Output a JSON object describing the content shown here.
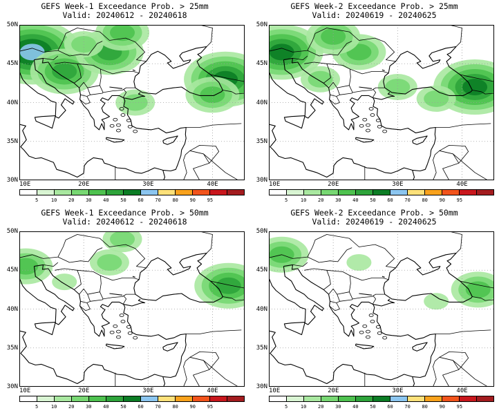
{
  "panels": [
    {
      "title_line1": "GEFS Week-1 Exceedance Prob. > 25mm",
      "title_line2": "Valid: 20240612 - 20240618",
      "precip_threshold_mm": 25,
      "week": 1,
      "blobs": [
        {
          "lon": 12,
          "lat": 46.5,
          "level": 5
        },
        {
          "lon": 17,
          "lat": 44,
          "level": 3
        },
        {
          "lon": 24,
          "lat": 46.5,
          "level": 3
        },
        {
          "lon": 26,
          "lat": 49,
          "level": 2
        },
        {
          "lon": 20,
          "lat": 47.5,
          "level": 1
        },
        {
          "lon": 42,
          "lat": 43,
          "level": 4
        },
        {
          "lon": 28,
          "lat": 40,
          "level": 1
        },
        {
          "lon": 40,
          "lat": 41,
          "level": 2
        }
      ]
    },
    {
      "title_line1": "GEFS Week-2 Exceedance Prob. > 25mm",
      "title_line2": "Valid: 20240619 - 20240625",
      "precip_threshold_mm": 25,
      "week": 2,
      "blobs": [
        {
          "lon": 12,
          "lat": 46.5,
          "level": 4
        },
        {
          "lon": 24,
          "lat": 46.5,
          "level": 2
        },
        {
          "lon": 20,
          "lat": 48.5,
          "level": 2
        },
        {
          "lon": 42,
          "lat": 42,
          "level": 4
        },
        {
          "lon": 18,
          "lat": 43,
          "level": 1
        },
        {
          "lon": 30,
          "lat": 42,
          "level": 1
        },
        {
          "lon": 36,
          "lat": 40.5,
          "level": 1
        }
      ]
    },
    {
      "title_line1": "GEFS Week-1 Exceedance Prob. > 50mm",
      "title_line2": "Valid: 20240612 - 20240618",
      "precip_threshold_mm": 50,
      "week": 1,
      "blobs": [
        {
          "lon": 11,
          "lat": 45.5,
          "level": 2
        },
        {
          "lon": 24,
          "lat": 46,
          "level": 1
        },
        {
          "lon": 26,
          "lat": 49,
          "level": 1
        },
        {
          "lon": 42.5,
          "lat": 43,
          "level": 3
        },
        {
          "lon": 17,
          "lat": 43.5,
          "level": 0
        }
      ]
    },
    {
      "title_line1": "GEFS Week-2 Exceedance Prob. > 50mm",
      "title_line2": "Valid: 20240619 - 20240625",
      "precip_threshold_mm": 50,
      "week": 2,
      "blobs": [
        {
          "lon": 12,
          "lat": 47,
          "level": 2
        },
        {
          "lon": 42.5,
          "lat": 42.5,
          "level": 2
        },
        {
          "lon": 24,
          "lat": 46,
          "level": 0
        },
        {
          "lon": 36,
          "lat": 41,
          "level": 0
        }
      ]
    }
  ],
  "axes": {
    "lon_ticks": [
      "10E",
      "20E",
      "30E",
      "40E"
    ],
    "lat_ticks": [
      "50N",
      "45N",
      "40N",
      "35N",
      "30N"
    ],
    "lon_range": [
      10,
      45
    ],
    "lat_range": [
      30,
      50
    ]
  },
  "colorbar": {
    "labels": [
      "5",
      "10",
      "20",
      "30",
      "40",
      "50",
      "60",
      "70",
      "80",
      "90",
      "95"
    ],
    "colors": [
      "#ffffff",
      "#d9f5d3",
      "#a9e8a0",
      "#78d873",
      "#4ec24f",
      "#2ea43b",
      "#0c7d25",
      "#8cc6f0",
      "#fde17a",
      "#f9a21c",
      "#f2541c",
      "#c9171d",
      "#a31c1f"
    ]
  }
}
